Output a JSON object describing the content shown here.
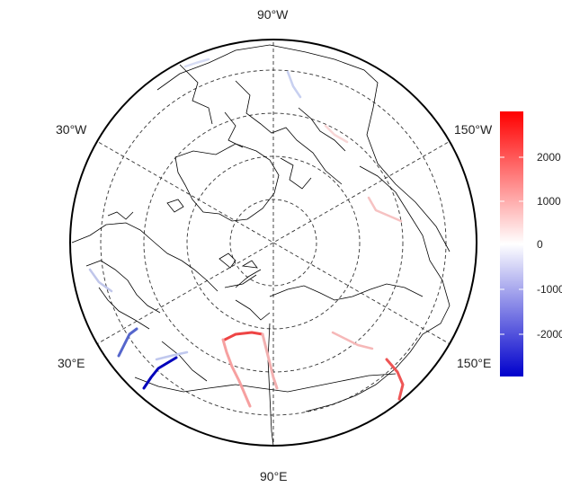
{
  "map": {
    "projection": "north-polar-stereographic",
    "graticule": "dashed",
    "labels": {
      "top": "90°W",
      "upper_left": "30°W",
      "upper_right": "150°W",
      "lower_left": "30°E",
      "lower_right": "150°E",
      "bottom": "90°E"
    }
  },
  "colorbar": {
    "ticks": [
      "2000",
      "1000",
      "0",
      "-1000",
      "-2000"
    ],
    "colors": {
      "high": "#ff0000",
      "mid": "#ffffff",
      "low": "#0000cc"
    }
  }
}
